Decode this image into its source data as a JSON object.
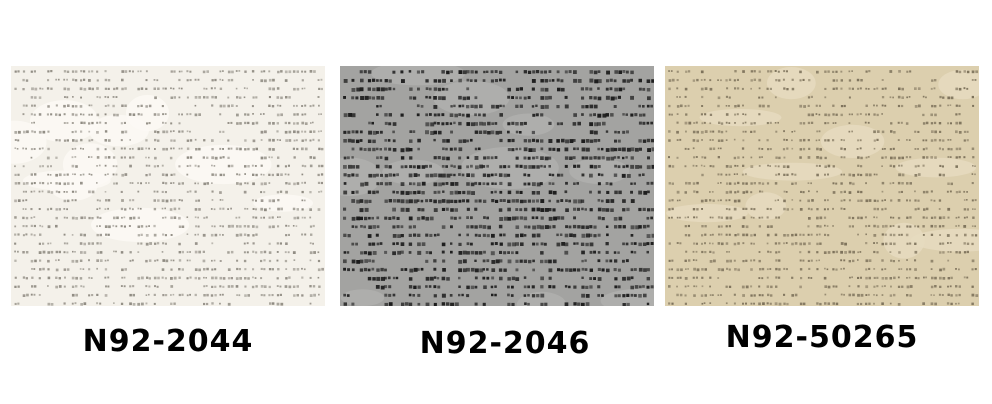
{
  "swatches": [
    {
      "code": "N92-2044",
      "base_color": "#f4f1ea",
      "dot_color": "#8f8b82",
      "blotch_color": "#fbf9f4"
    },
    {
      "code": "N92-2046",
      "base_color": "#a3a3a1",
      "dot_color": "#1c1c1c",
      "blotch_color": "#b0b0ae"
    },
    {
      "code": "N92-50265",
      "base_color": "#dccfae",
      "dot_color": "#7d725b",
      "blotch_color": "#e6dbbf"
    }
  ]
}
